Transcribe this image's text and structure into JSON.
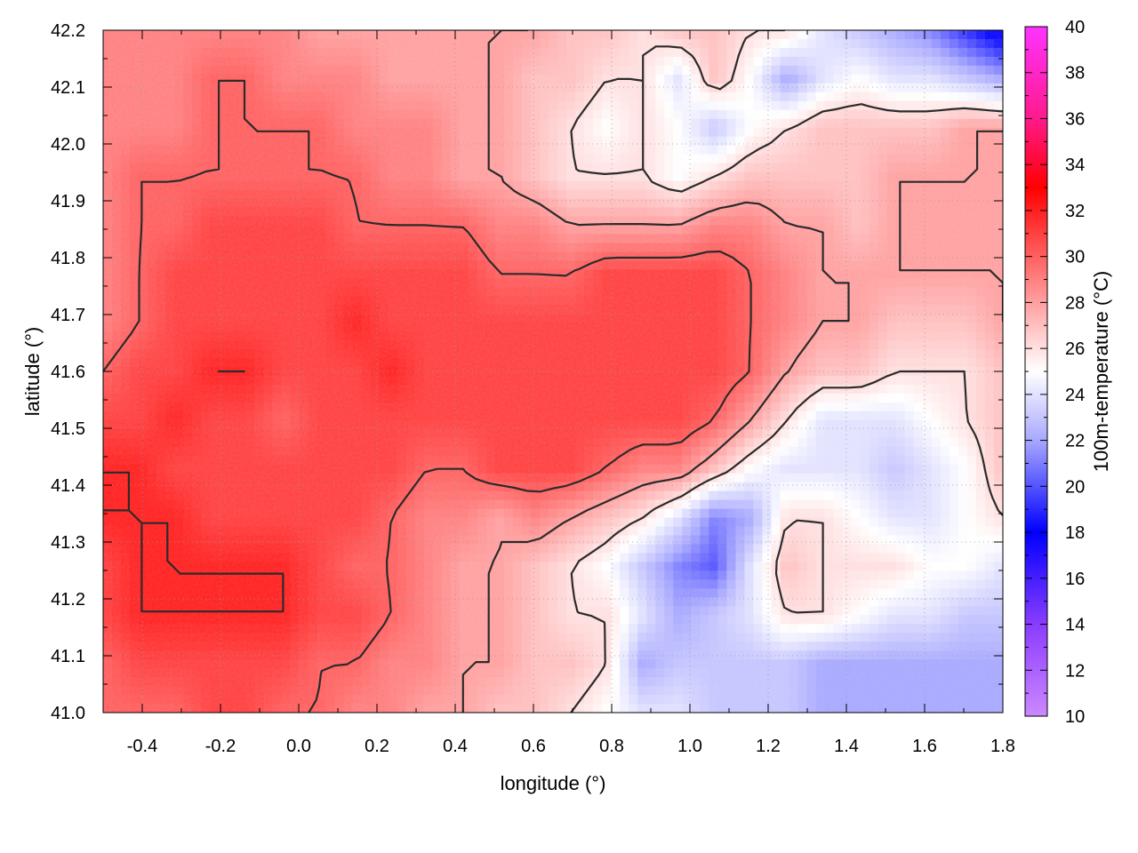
{
  "chart_data": {
    "type": "heatmap",
    "title": "",
    "xlabel": "longitude (°)",
    "ylabel": "latitude (°)",
    "colorbar_label": "100m-temperature (°C)",
    "xlim": [
      -0.5,
      1.8
    ],
    "ylim": [
      41.0,
      42.2
    ],
    "x_ticks": [
      "-0.4",
      "-0.2",
      "0.0",
      "0.2",
      "0.4",
      "0.6",
      "0.8",
      "1.0",
      "1.2",
      "1.4",
      "1.6",
      "1.8"
    ],
    "y_ticks": [
      "41.0",
      "41.1",
      "41.2",
      "41.3",
      "41.4",
      "41.5",
      "41.6",
      "41.7",
      "41.8",
      "41.9",
      "42.0",
      "42.1",
      "42.2"
    ],
    "colorbar_ticks": [
      "10",
      "12",
      "14",
      "16",
      "18",
      "20",
      "22",
      "24",
      "26",
      "28",
      "30",
      "32",
      "34",
      "36",
      "38",
      "40"
    ],
    "colorbar_range": [
      10,
      40
    ],
    "colorscale": [
      {
        "value": 10,
        "color": "#cc88ff"
      },
      {
        "value": 14,
        "color": "#8a3cff"
      },
      {
        "value": 18,
        "color": "#0000ff"
      },
      {
        "value": 22,
        "color": "#a8a8ff"
      },
      {
        "value": 25,
        "color": "#ffffff"
      },
      {
        "value": 28,
        "color": "#ffa0a0"
      },
      {
        "value": 33,
        "color": "#ff0000"
      },
      {
        "value": 36,
        "color": "#ff1a8c"
      },
      {
        "value": 40,
        "color": "#ff33ff"
      }
    ],
    "grid": true,
    "contours": true,
    "temperature_field": {
      "rows_top_to_bottom": true,
      "values": [
        [
          29,
          29,
          29,
          29,
          29,
          29,
          28,
          28,
          28,
          28,
          28,
          28,
          28,
          27,
          27,
          26,
          27,
          27,
          26,
          26,
          24,
          23,
          22,
          21,
          19,
          17
        ],
        [
          29,
          29,
          29,
          30,
          30,
          29,
          29,
          29,
          28,
          28,
          28,
          28,
          27,
          27,
          26,
          26,
          24,
          27,
          25,
          22,
          24,
          25,
          24,
          24,
          23,
          22
        ],
        [
          29,
          29,
          29,
          30,
          30,
          30,
          30,
          29,
          29,
          29,
          28,
          28,
          27,
          26,
          25,
          26,
          25,
          23,
          25,
          26,
          27,
          27,
          27,
          27,
          28,
          28
        ],
        [
          29,
          30,
          30,
          30,
          30,
          30,
          30,
          30,
          29,
          29,
          28,
          28,
          27,
          26,
          26,
          26,
          25,
          26,
          27,
          27,
          27,
          27,
          28,
          28,
          28,
          28
        ],
        [
          29,
          30,
          30,
          31,
          31,
          31,
          31,
          30,
          30,
          30,
          30,
          29,
          29,
          28,
          28,
          28,
          28,
          29,
          29,
          28,
          28,
          27,
          28,
          28,
          28,
          28
        ],
        [
          29,
          30,
          31,
          31,
          31,
          31,
          31,
          31,
          31,
          31,
          31,
          30,
          30,
          30,
          31,
          31,
          31,
          31,
          30,
          29,
          28,
          28,
          28,
          28,
          28,
          28
        ],
        [
          29,
          30,
          31,
          31,
          31,
          31,
          31,
          32,
          31,
          31,
          31,
          31,
          31,
          31,
          31,
          31,
          31,
          31,
          30,
          29,
          28,
          28,
          27,
          27,
          27,
          28
        ],
        [
          30,
          31,
          31,
          32,
          32,
          31,
          31,
          31,
          32,
          31,
          31,
          31,
          31,
          31,
          31,
          31,
          31,
          31,
          30,
          28,
          27,
          27,
          26,
          26,
          26,
          27
        ],
        [
          31,
          31,
          32,
          31,
          31,
          30,
          31,
          31,
          31,
          31,
          31,
          31,
          31,
          31,
          31,
          31,
          31,
          30,
          28,
          26,
          24,
          24,
          24,
          25,
          26,
          27
        ],
        [
          32,
          32,
          31,
          31,
          31,
          31,
          31,
          31,
          31,
          30,
          30,
          31,
          31,
          31,
          30,
          29,
          29,
          27,
          25,
          24,
          24,
          24,
          23,
          24,
          25,
          27
        ],
        [
          32,
          32,
          32,
          31,
          31,
          31,
          31,
          31,
          30,
          29,
          29,
          28,
          29,
          28,
          27,
          26,
          24,
          21,
          22,
          26,
          26,
          25,
          24,
          24,
          25,
          26
        ],
        [
          31,
          32,
          32,
          32,
          32,
          32,
          31,
          30,
          30,
          29,
          28,
          28,
          27,
          26,
          25,
          23,
          21,
          20,
          24,
          27,
          26,
          26,
          26,
          25,
          25,
          24
        ],
        [
          31,
          32,
          32,
          32,
          32,
          32,
          31,
          31,
          30,
          29,
          28,
          28,
          27,
          26,
          26,
          24,
          22,
          23,
          24,
          26,
          26,
          25,
          24,
          24,
          23,
          23
        ],
        [
          30,
          31,
          31,
          31,
          31,
          31,
          30,
          30,
          29,
          29,
          28,
          28,
          27,
          27,
          26,
          22,
          23,
          23,
          23,
          23,
          22,
          22,
          22,
          22,
          22,
          22
        ],
        [
          30,
          30,
          30,
          31,
          31,
          30,
          30,
          29,
          29,
          28,
          28,
          27,
          27,
          26,
          25,
          24,
          24,
          23,
          23,
          23,
          22,
          22,
          22,
          22,
          22,
          22
        ]
      ]
    },
    "contour_levels": [
      26,
      28,
      30,
      32
    ]
  }
}
